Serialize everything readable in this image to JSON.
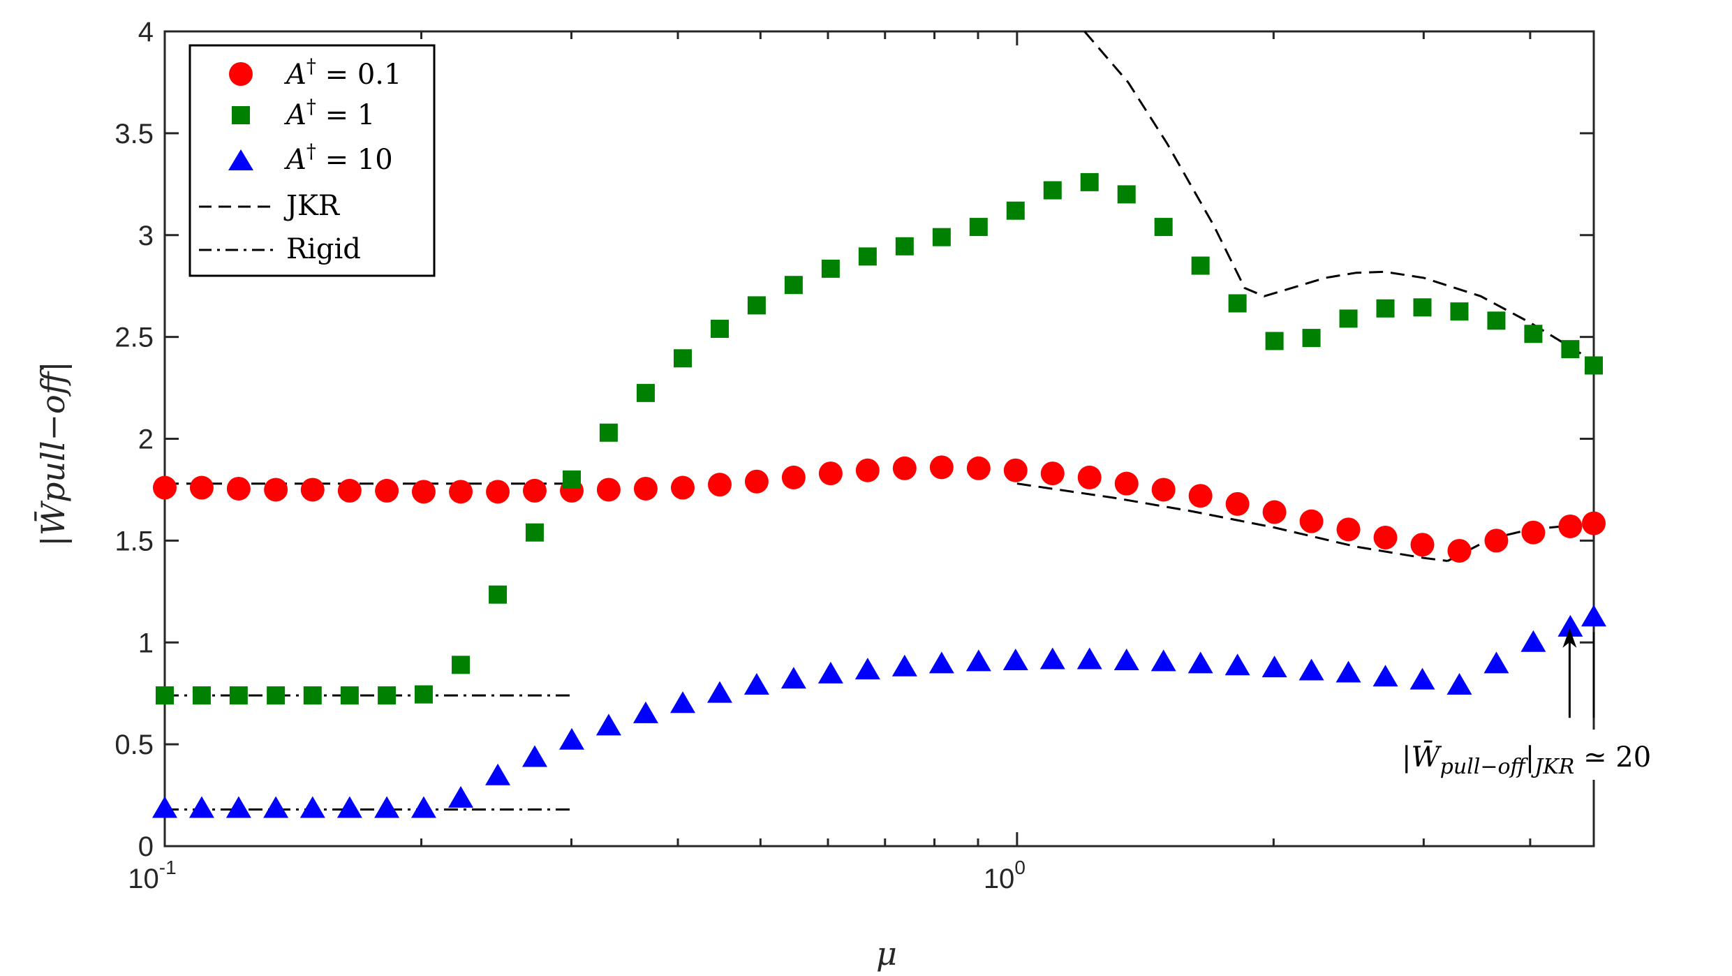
{
  "chart_data": {
    "type": "scatter",
    "xscale": "log",
    "xlim": [
      0.1,
      4.75
    ],
    "ylim": [
      0,
      4
    ],
    "yticks": [
      0,
      0.5,
      1,
      1.5,
      2,
      2.5,
      3,
      3.5,
      4
    ],
    "ytick_labels": [
      "0",
      "0.5",
      "1",
      "1.5",
      "2",
      "2.5",
      "3",
      "3.5",
      "4"
    ],
    "xticks": [
      {
        "value": 0.1,
        "base": "10",
        "exp": "-1"
      },
      {
        "value": 1,
        "base": "10",
        "exp": "0"
      }
    ],
    "xlabel": "μ",
    "ylabel": "|W̄pull−off|",
    "series": [
      {
        "name": "A† = 0.1",
        "label_var": "A",
        "label_sup": "†",
        "label_rest": " = 0.1",
        "marker": "circle",
        "color": "#ff0000",
        "x": [
          0.1,
          0.1105,
          0.1221,
          0.135,
          0.1491,
          0.1648,
          0.1822,
          0.2013,
          0.2225,
          0.2459,
          0.2717,
          0.3003,
          0.3318,
          0.3667,
          0.4053,
          0.4479,
          0.4949,
          0.5469,
          0.6044,
          0.6679,
          0.7381,
          0.8157,
          0.9014,
          0.9961,
          1.1008,
          1.2164,
          1.3443,
          1.4855,
          1.6416,
          1.8141,
          2.0047,
          2.2153,
          2.4481,
          2.7053,
          2.9896,
          3.3037,
          3.6508,
          4.0344,
          4.4583,
          4.75
        ],
        "y": [
          1.76,
          1.76,
          1.755,
          1.75,
          1.75,
          1.745,
          1.745,
          1.74,
          1.74,
          1.74,
          1.745,
          1.745,
          1.75,
          1.755,
          1.76,
          1.775,
          1.79,
          1.81,
          1.83,
          1.845,
          1.855,
          1.86,
          1.855,
          1.845,
          1.83,
          1.81,
          1.78,
          1.75,
          1.72,
          1.68,
          1.64,
          1.595,
          1.555,
          1.515,
          1.48,
          1.45,
          1.5,
          1.54,
          1.57,
          1.585
        ]
      },
      {
        "name": "A† = 1",
        "label_var": "A",
        "label_sup": "†",
        "label_rest": " = 1",
        "marker": "square",
        "color": "#008000",
        "x": [
          0.1,
          0.1105,
          0.1221,
          0.135,
          0.1491,
          0.1648,
          0.1822,
          0.2013,
          0.2225,
          0.2459,
          0.2717,
          0.3003,
          0.3318,
          0.3667,
          0.4053,
          0.4479,
          0.4949,
          0.5469,
          0.6044,
          0.6679,
          0.7381,
          0.8157,
          0.9014,
          0.9961,
          1.1008,
          1.2164,
          1.3443,
          1.4855,
          1.6416,
          1.8141,
          2.0047,
          2.2153,
          2.4481,
          2.7053,
          2.9896,
          3.3037,
          3.6508,
          4.0344,
          4.4583,
          4.75
        ],
        "y": [
          0.74,
          0.74,
          0.74,
          0.74,
          0.74,
          0.74,
          0.74,
          0.745,
          0.89,
          1.235,
          1.54,
          1.8,
          2.03,
          2.225,
          2.395,
          2.54,
          2.655,
          2.755,
          2.835,
          2.895,
          2.945,
          2.99,
          3.04,
          3.12,
          3.22,
          3.26,
          3.2,
          3.04,
          2.85,
          2.665,
          2.48,
          2.495,
          2.59,
          2.64,
          2.645,
          2.625,
          2.58,
          2.515,
          2.44,
          2.36
        ]
      },
      {
        "name": "A† = 10",
        "label_var": "A",
        "label_sup": "†",
        "label_rest": " = 10",
        "marker": "triangle",
        "color": "#0000ff",
        "x": [
          0.1,
          0.1105,
          0.1221,
          0.135,
          0.1491,
          0.1648,
          0.1822,
          0.2013,
          0.2225,
          0.2459,
          0.2717,
          0.3003,
          0.3318,
          0.3667,
          0.4053,
          0.4479,
          0.4949,
          0.5469,
          0.6044,
          0.6679,
          0.7381,
          0.8157,
          0.9014,
          0.9961,
          1.1008,
          1.2164,
          1.3443,
          1.4855,
          1.6416,
          1.8141,
          2.0047,
          2.2153,
          2.4481,
          2.7053,
          2.9896,
          3.3037,
          3.6508,
          4.0344,
          4.4583,
          4.75
        ],
        "y": [
          0.18,
          0.18,
          0.18,
          0.18,
          0.18,
          0.18,
          0.18,
          0.18,
          0.23,
          0.34,
          0.43,
          0.515,
          0.585,
          0.645,
          0.695,
          0.745,
          0.785,
          0.815,
          0.84,
          0.86,
          0.875,
          0.89,
          0.9,
          0.905,
          0.91,
          0.91,
          0.905,
          0.9,
          0.89,
          0.88,
          0.87,
          0.855,
          0.845,
          0.825,
          0.81,
          0.785,
          0.89,
          0.995,
          1.07,
          1.12
        ]
      },
      {
        "name": "JKR",
        "style": "dashed",
        "color": "#000000",
        "segments": [
          {
            "x": [
              0.1,
              0.15,
              0.2,
              0.25,
              0.3
            ],
            "y": [
              1.78,
              1.78,
              1.78,
              1.78,
              1.78
            ]
          },
          {
            "x": [
              1.0,
              1.3,
              1.6,
              2.0,
              2.5,
              3.0,
              3.2
            ],
            "y": [
              1.78,
              1.71,
              1.645,
              1.565,
              1.47,
              1.415,
              1.4
            ]
          },
          {
            "x": [
              3.2,
              3.6,
              4.0,
              4.5
            ],
            "y": [
              1.4,
              1.51,
              1.555,
              1.575
            ]
          },
          {
            "x": [
              1.2,
              1.35,
              1.5,
              1.7,
              1.85,
              1.95,
              2.1,
              2.3,
              2.5,
              2.7,
              3.0,
              3.5,
              4.0,
              4.5,
              4.75
            ],
            "y": [
              4.0,
              3.75,
              3.45,
              3.05,
              2.74,
              2.7,
              2.74,
              2.79,
              2.815,
              2.82,
              2.79,
              2.7,
              2.57,
              2.44,
              2.38
            ]
          }
        ]
      },
      {
        "name": "Rigid",
        "style": "dashdot",
        "color": "#000000",
        "segments": [
          {
            "x": [
              0.1,
              0.3
            ],
            "y": [
              0.74,
              0.74
            ]
          },
          {
            "x": [
              0.1,
              0.3
            ],
            "y": [
              0.18,
              0.18
            ]
          }
        ]
      }
    ],
    "annotations": [
      {
        "x": 4.45,
        "y_start": 0.63,
        "y_end": 1.07,
        "arrow": true
      },
      {
        "x": 4.75,
        "y_start": 0.63,
        "y_end": 1.12,
        "arrow": false
      }
    ],
    "annotation_text": {
      "open": "|",
      "var": "W̄",
      "sub": "pull−off",
      "mid": "|",
      "sub2": "JKR",
      "rest": " ≃ 20"
    },
    "legend_position": "top-left",
    "grid": false
  }
}
